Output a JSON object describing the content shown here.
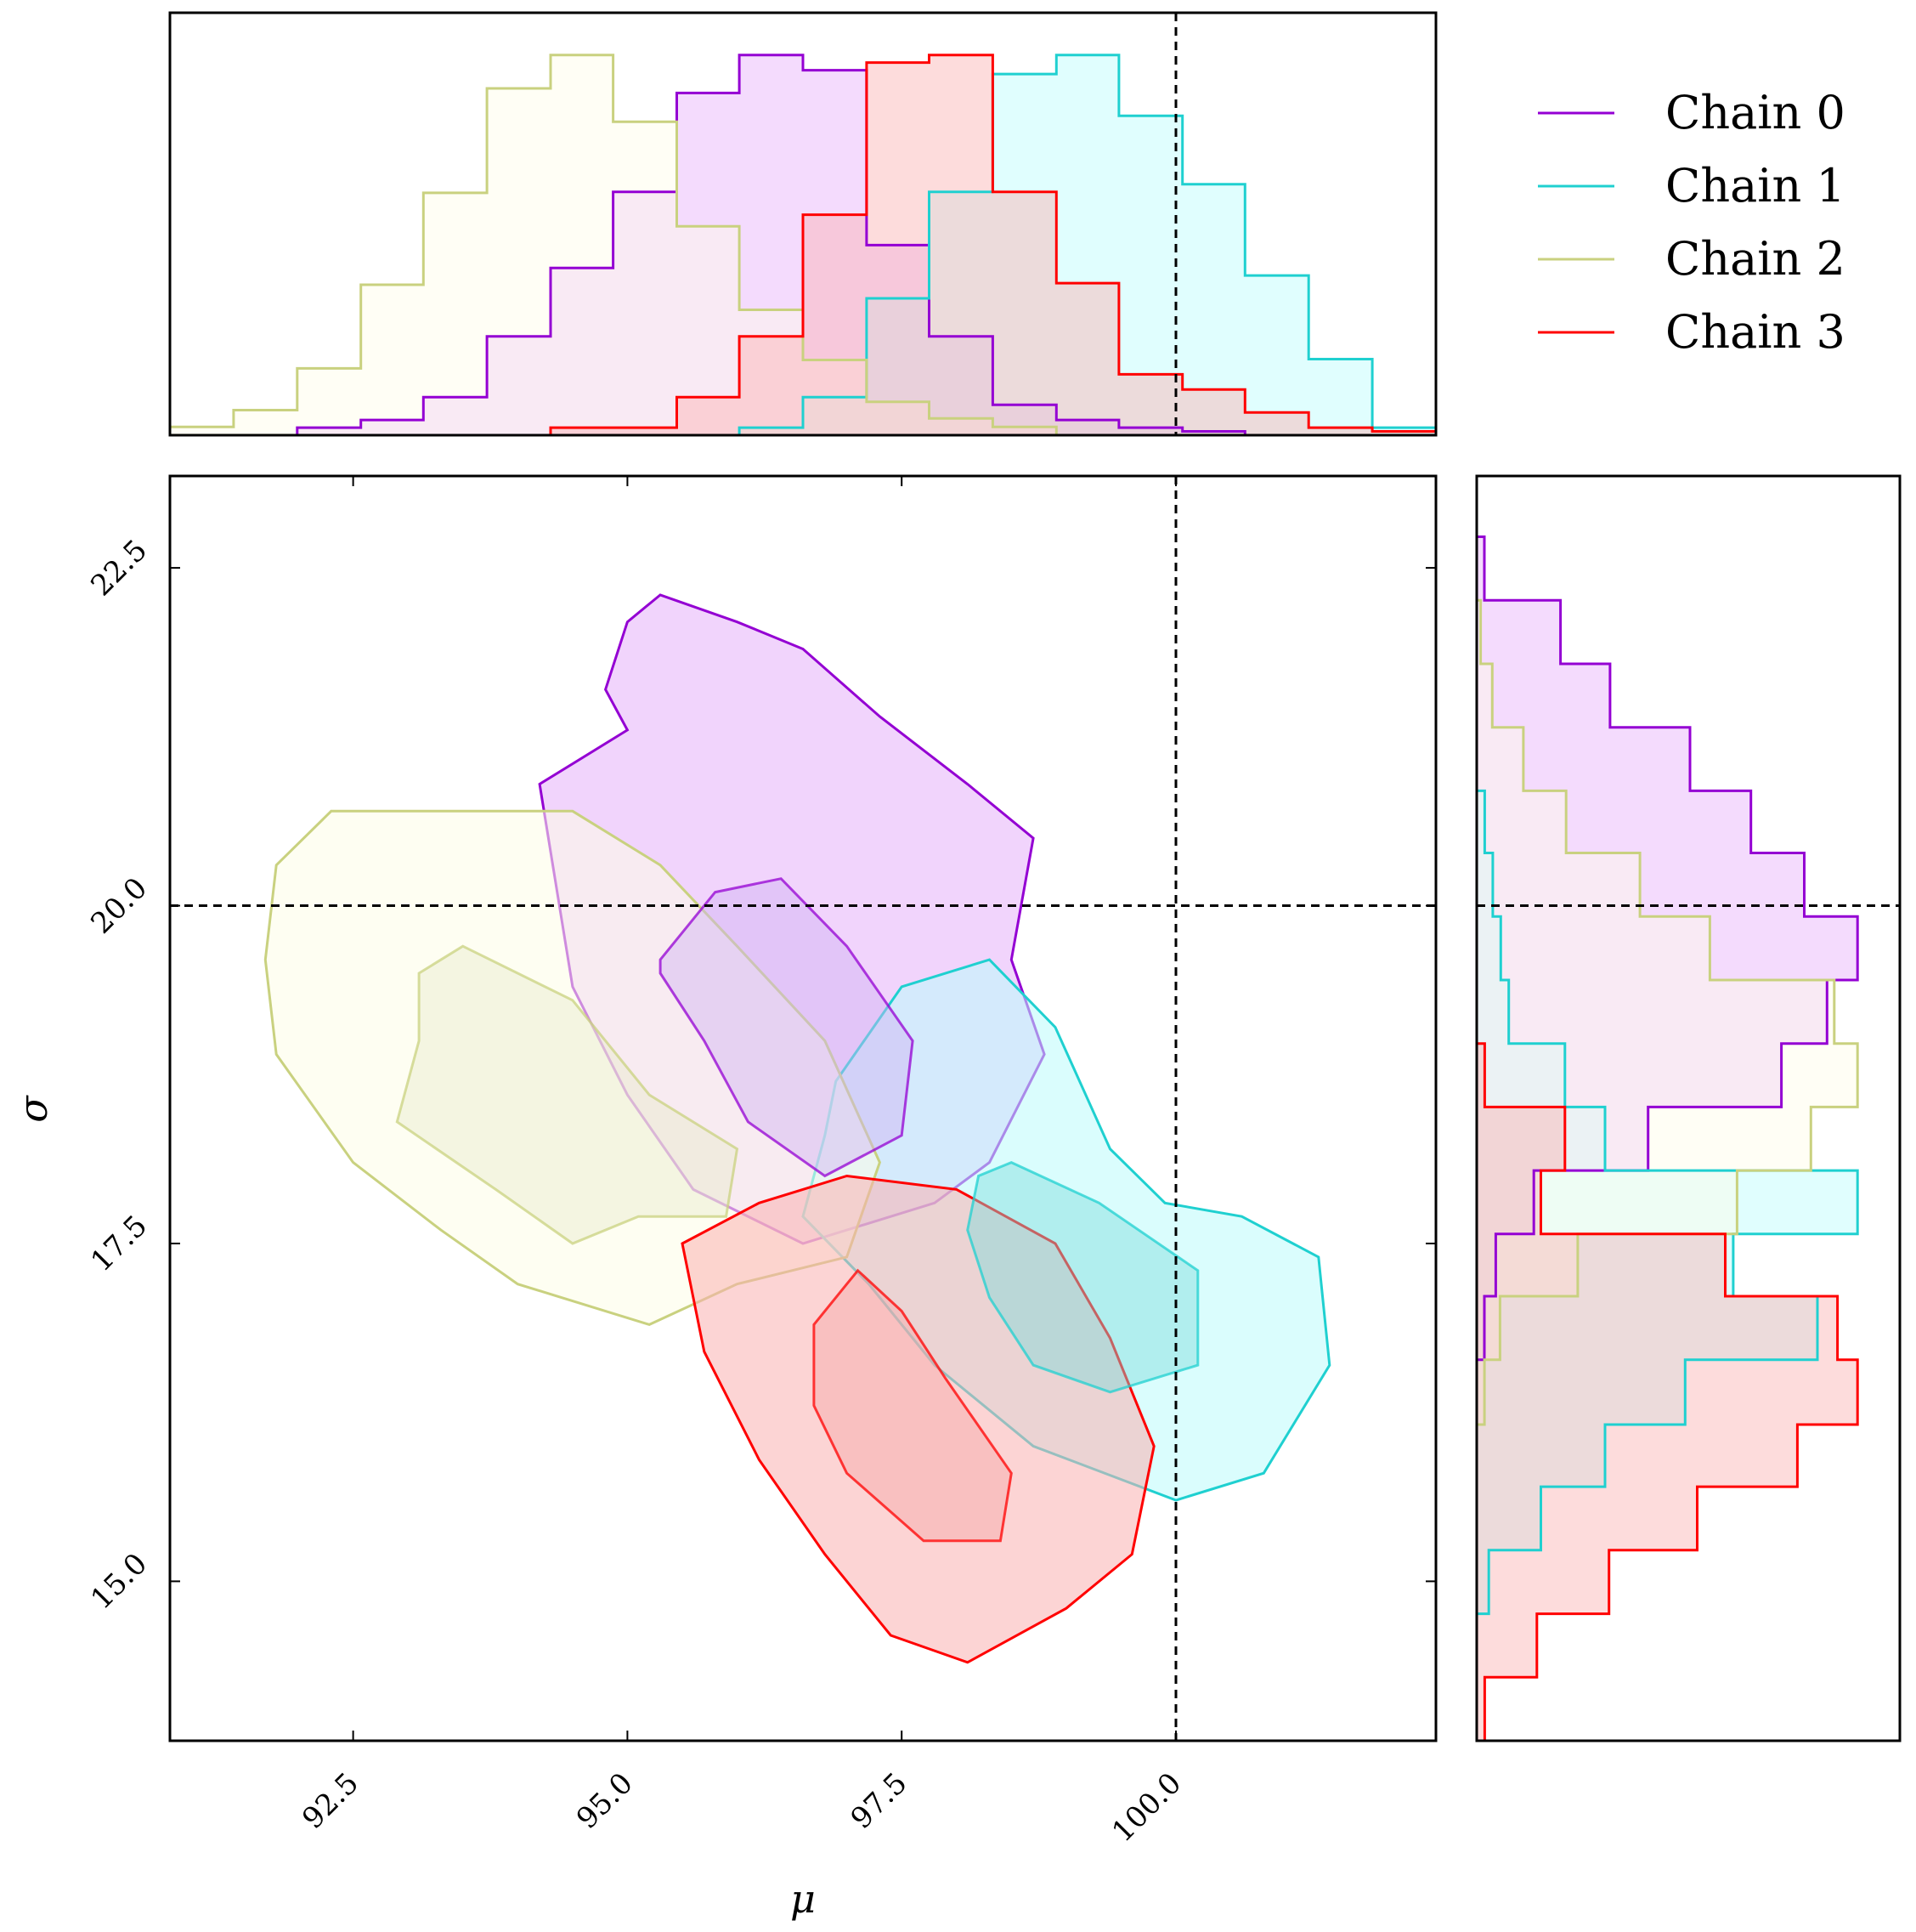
{
  "chart_data": {
    "type": "corner-plot",
    "xlabel": "μ",
    "ylabel": "σ",
    "x_ticks": [
      "92.5",
      "95.0",
      "97.5",
      "100.0"
    ],
    "y_ticks": [
      "15.0",
      "17.5",
      "20.0",
      "22.5"
    ],
    "xlim": [
      90.83,
      102.37
    ],
    "ylim": [
      13.82,
      23.18
    ],
    "truth": {
      "mu": 100.0,
      "sigma": 20.0
    },
    "grid": false,
    "legend_position": "top-right",
    "series": [
      {
        "name": "Chain 0",
        "color": "#9400d3",
        "fill_outer": "#e6b0fa",
        "fill_inner": "#d1b4f4",
        "mu_hist": {
          "edges": [
            90.83,
            91.41,
            91.99,
            92.57,
            93.14,
            93.72,
            94.3,
            94.87,
            95.45,
            96.02,
            96.6,
            97.18,
            97.75,
            98.33,
            98.91,
            99.48,
            100.06,
            100.63,
            101.21,
            101.79,
            102.37
          ],
          "density": [
            0,
            0,
            0.02,
            0.04,
            0.1,
            0.26,
            0.44,
            0.64,
            0.9,
            1.0,
            0.96,
            0.5,
            0.26,
            0.08,
            0.04,
            0.02,
            0.01,
            0,
            0,
            0
          ]
        },
        "sigma_hist": {
          "edges": [
            13.82,
            14.29,
            14.76,
            15.23,
            15.7,
            16.16,
            16.64,
            17.11,
            17.57,
            18.04,
            18.51,
            18.98,
            19.45,
            19.92,
            20.39,
            20.85,
            21.32,
            21.79,
            22.26,
            22.73,
            23.18
          ],
          "density": [
            0,
            0,
            0,
            0,
            0,
            0,
            0.02,
            0.05,
            0.15,
            0.45,
            0.8,
            0.92,
            1.0,
            0.86,
            0.72,
            0.56,
            0.35,
            0.22,
            0.02,
            0
          ]
        },
        "contour_outer": [
          [
            94.2,
            20.9
          ],
          [
            95.0,
            21.3
          ],
          [
            94.8,
            21.6
          ],
          [
            95.0,
            22.1
          ],
          [
            95.3,
            22.3
          ],
          [
            96.0,
            22.1
          ],
          [
            96.6,
            21.9
          ],
          [
            97.3,
            21.4
          ],
          [
            98.1,
            20.9
          ],
          [
            98.7,
            20.5
          ],
          [
            98.5,
            19.6
          ],
          [
            98.8,
            18.9
          ],
          [
            98.3,
            18.1
          ],
          [
            97.8,
            17.8
          ],
          [
            96.6,
            17.5
          ],
          [
            95.6,
            17.9
          ],
          [
            95.0,
            18.6
          ],
          [
            94.5,
            19.4
          ],
          [
            94.3,
            20.4
          ]
        ],
        "contour_inner": [
          [
            95.3,
            19.6
          ],
          [
            95.8,
            20.1
          ],
          [
            96.4,
            20.2
          ],
          [
            97.0,
            19.7
          ],
          [
            97.6,
            19.0
          ],
          [
            97.5,
            18.3
          ],
          [
            96.8,
            18.0
          ],
          [
            96.1,
            18.4
          ],
          [
            95.7,
            19.0
          ],
          [
            95.3,
            19.5
          ]
        ]
      },
      {
        "name": "Chain 1",
        "color": "#1fd0d0",
        "fill_outer": "#bbfcfc",
        "fill_inner": "#7fdcdc",
        "mu_hist": {
          "edges": [
            90.83,
            91.41,
            91.99,
            92.57,
            93.14,
            93.72,
            94.3,
            94.87,
            95.45,
            96.02,
            96.6,
            97.18,
            97.75,
            98.33,
            98.91,
            99.48,
            100.06,
            100.63,
            101.21,
            101.79,
            102.37
          ],
          "density": [
            0,
            0,
            0,
            0,
            0,
            0,
            0,
            0,
            0,
            0.02,
            0.1,
            0.36,
            0.64,
            0.95,
            1.0,
            0.84,
            0.66,
            0.42,
            0.2,
            0.02
          ]
        },
        "sigma_hist": {
          "edges": [
            13.82,
            14.29,
            14.76,
            15.23,
            15.7,
            16.16,
            16.64,
            17.11,
            17.57,
            18.04,
            18.51,
            18.98,
            19.45,
            19.92,
            20.39,
            20.85,
            21.32,
            21.79,
            22.26,
            22.73,
            23.18
          ],
          "density": [
            0,
            0,
            0.03,
            0.16,
            0.32,
            0.52,
            0.85,
            0.64,
            0.95,
            0.32,
            0.22,
            0.08,
            0.06,
            0.04,
            0.02,
            0,
            0,
            0,
            0,
            0
          ]
        },
        "contour_outer": [
          [
            96.9,
            18.7
          ],
          [
            97.5,
            19.4
          ],
          [
            98.3,
            19.6
          ],
          [
            98.9,
            19.1
          ],
          [
            99.4,
            18.2
          ],
          [
            99.9,
            17.8
          ],
          [
            100.6,
            17.7
          ],
          [
            101.3,
            17.4
          ],
          [
            101.4,
            16.6
          ],
          [
            100.8,
            15.8
          ],
          [
            100.0,
            15.6
          ],
          [
            98.7,
            16.0
          ],
          [
            97.8,
            16.6
          ],
          [
            97.2,
            17.2
          ],
          [
            96.6,
            17.7
          ],
          [
            96.8,
            18.3
          ]
        ],
        "contour_inner": [
          [
            98.5,
            18.1
          ],
          [
            99.3,
            17.8
          ],
          [
            100.2,
            17.3
          ],
          [
            100.2,
            16.6
          ],
          [
            99.4,
            16.4
          ],
          [
            98.7,
            16.6
          ],
          [
            98.3,
            17.1
          ],
          [
            98.1,
            17.6
          ],
          [
            98.2,
            18.0
          ]
        ]
      },
      {
        "name": "Chain 2",
        "color": "#c9d17f",
        "fill_outer": "#fefde8",
        "fill_inner": "#e8eacb",
        "mu_hist": {
          "edges": [
            90.83,
            91.41,
            91.99,
            92.57,
            93.14,
            93.72,
            94.3,
            94.87,
            95.45,
            96.02,
            96.6,
            97.18,
            97.75,
            98.33,
            98.91,
            99.48,
            100.06,
            100.63,
            101.21,
            101.79,
            102.37
          ],
          "density": [
            0.02,
            0.06,
            0.16,
            0.36,
            0.58,
            0.83,
            0.91,
            0.75,
            0.5,
            0.3,
            0.18,
            0.08,
            0.04,
            0.02,
            0,
            0,
            0,
            0,
            0,
            0
          ]
        },
        "sigma_hist": {
          "edges": [
            13.82,
            14.29,
            14.76,
            15.23,
            15.7,
            16.16,
            16.64,
            17.11,
            17.57,
            18.04,
            18.51,
            18.98,
            19.45,
            19.92,
            20.39,
            20.85,
            21.32,
            21.79,
            22.26,
            22.73,
            23.18
          ],
          "density": [
            0,
            0,
            0,
            0,
            0,
            0.02,
            0.06,
            0.26,
            0.67,
            0.86,
            0.98,
            0.92,
            0.6,
            0.42,
            0.23,
            0.12,
            0.04,
            0.01,
            0,
            0
          ]
        },
        "contour_outer": [
          [
            91.8,
            20.3
          ],
          [
            92.3,
            20.7
          ],
          [
            93.0,
            20.7
          ],
          [
            94.5,
            20.7
          ],
          [
            95.3,
            20.3
          ],
          [
            96.0,
            19.7
          ],
          [
            96.8,
            19.0
          ],
          [
            97.3,
            18.1
          ],
          [
            97.0,
            17.4
          ],
          [
            96.0,
            17.2
          ],
          [
            95.2,
            16.9
          ],
          [
            94.0,
            17.2
          ],
          [
            93.3,
            17.6
          ],
          [
            92.5,
            18.1
          ],
          [
            91.8,
            18.9
          ],
          [
            91.7,
            19.6
          ]
        ],
        "contour_inner": [
          [
            93.1,
            19.5
          ],
          [
            93.5,
            19.7
          ],
          [
            94.5,
            19.3
          ],
          [
            95.2,
            18.6
          ],
          [
            96.0,
            18.2
          ],
          [
            95.9,
            17.7
          ],
          [
            95.1,
            17.7
          ],
          [
            94.5,
            17.5
          ],
          [
            93.8,
            17.9
          ],
          [
            92.9,
            18.4
          ],
          [
            93.1,
            19.0
          ]
        ]
      },
      {
        "name": "Chain 3",
        "color": "#ff0000",
        "fill_outer": "#fab1b1",
        "fill_inner": "#f6a8a8",
        "mu_hist": {
          "edges": [
            90.83,
            91.41,
            91.99,
            92.57,
            93.14,
            93.72,
            94.3,
            94.87,
            95.45,
            96.02,
            96.6,
            97.18,
            97.75,
            98.33,
            98.91,
            99.48,
            100.06,
            100.63,
            101.21,
            101.79,
            102.37
          ],
          "density": [
            0,
            0,
            0,
            0,
            0,
            0,
            0.02,
            0.02,
            0.1,
            0.26,
            0.58,
            0.98,
            1.0,
            0.64,
            0.4,
            0.16,
            0.12,
            0.06,
            0.02,
            0.01
          ]
        },
        "sigma_hist": {
          "edges": [
            13.82,
            14.29,
            14.76,
            15.23,
            15.7,
            16.16,
            16.64,
            17.11,
            17.57,
            18.04,
            18.51,
            18.98,
            19.45,
            19.92,
            20.39,
            20.85,
            21.32,
            21.79,
            22.26,
            22.73,
            23.18
          ],
          "density": [
            0.02,
            0.15,
            0.33,
            0.55,
            0.8,
            0.95,
            0.9,
            0.62,
            0.16,
            0.22,
            0.02,
            0,
            0,
            0,
            0,
            0,
            0,
            0,
            0,
            0
          ]
        },
        "contour_outer": [
          [
            95.5,
            17.5
          ],
          [
            96.2,
            17.8
          ],
          [
            97.0,
            18.0
          ],
          [
            98.0,
            17.9
          ],
          [
            98.9,
            17.5
          ],
          [
            99.4,
            16.8
          ],
          [
            99.8,
            16.0
          ],
          [
            99.6,
            15.2
          ],
          [
            99.0,
            14.8
          ],
          [
            98.1,
            14.4
          ],
          [
            97.4,
            14.6
          ],
          [
            96.8,
            15.2
          ],
          [
            96.2,
            15.9
          ],
          [
            95.7,
            16.7
          ]
        ],
        "contour_inner": [
          [
            97.1,
            17.3
          ],
          [
            97.5,
            17.0
          ],
          [
            97.9,
            16.5
          ],
          [
            98.5,
            15.8
          ],
          [
            98.4,
            15.3
          ],
          [
            97.7,
            15.3
          ],
          [
            97.0,
            15.8
          ],
          [
            96.7,
            16.3
          ],
          [
            96.7,
            16.9
          ],
          [
            97.0,
            17.2
          ]
        ]
      }
    ]
  }
}
